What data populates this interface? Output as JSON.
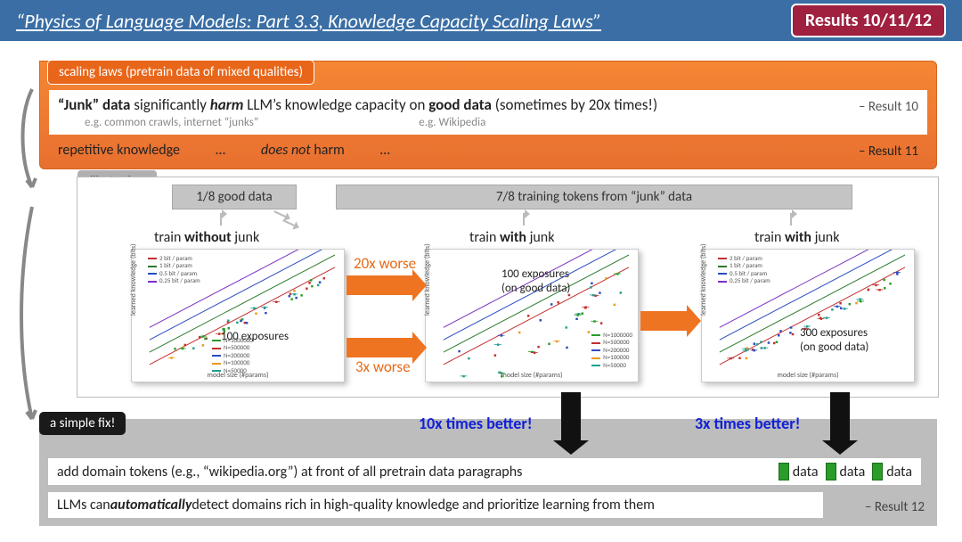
{
  "header": {
    "title": "Physics of Language Models: Part 3.3, Knowledge Capacity Scaling Laws",
    "badge": "Results 10/11/12"
  },
  "orange": {
    "badge": "scaling laws (pretrain data of mixed qualities)",
    "row1_html": "<b>“Junk” data</b> significantly <b><i>harm</i></b> LLM’s knowledge capacity on <b>good data</b> (sometimes by 20x times!)",
    "sub1": "e.g. common crawls, internet “junks”",
    "sub2": "e.g. Wikipedia",
    "result10": "– Result 10",
    "row2_left": "repetitive knowledge",
    "row2_dots1": "…",
    "row2_mid_html": "<i>does not</i> harm",
    "row2_dots2": "…",
    "result11": "– Result 11"
  },
  "illus": {
    "badge": "illustration",
    "good_bar": "1/8 good data",
    "junk_bar": "7/8 training tokens from “junk” data",
    "col1_html": "train <b>without</b> junk",
    "col2_html": "train <b>with</b> junk",
    "col3_html": "train <b>with</b> junk",
    "chart_xlabel": "model size (#params)",
    "chart_ylabel": "learned knowledge (bits)",
    "chart1_note": "100 exposures",
    "chart2_note1": "100 exposures",
    "chart2_note2": "(on good data)",
    "chart3_note1": "300 exposures",
    "chart3_note2": "(on good data)",
    "legend1": [
      "2 bit / param",
      "1 bit / param",
      "0.5 bit / param",
      "0.25 bit / param"
    ],
    "legend2": [
      "N=1000000",
      "N=500000",
      "N=200000",
      "N=100000",
      "N=50000"
    ],
    "line_colors": [
      "#c23030",
      "#2a7a2a",
      "#2a4cc0",
      "#7a30c2"
    ],
    "scatter_colors": [
      "#2a9c2a",
      "#c23030",
      "#2a4cc0",
      "#e89a20",
      "#20a090"
    ],
    "arrow1_label": "20x worse",
    "arrow2_label": "3x worse"
  },
  "bottom": {
    "fix_badge": "a simple fix!",
    "better1": "10x times better!",
    "better2": "3x times better!",
    "line1": "add domain tokens (e.g., “wikipedia.org”) at front of all pretrain data paragraphs",
    "data_label": "data",
    "line2_html": "LLMs can <b><i>automatically</i></b> detect domains rich in high-quality knowledge and prioritize learning from them",
    "result12": "– Result 12"
  },
  "colors": {
    "header_bg": "#3a6ea5",
    "orange_bg": "#f07a2e",
    "arrow_orange": "#ee7422",
    "blue_text": "#1020d8",
    "badge_red": "#a02040",
    "gray_panel": "#bdbdbd"
  }
}
